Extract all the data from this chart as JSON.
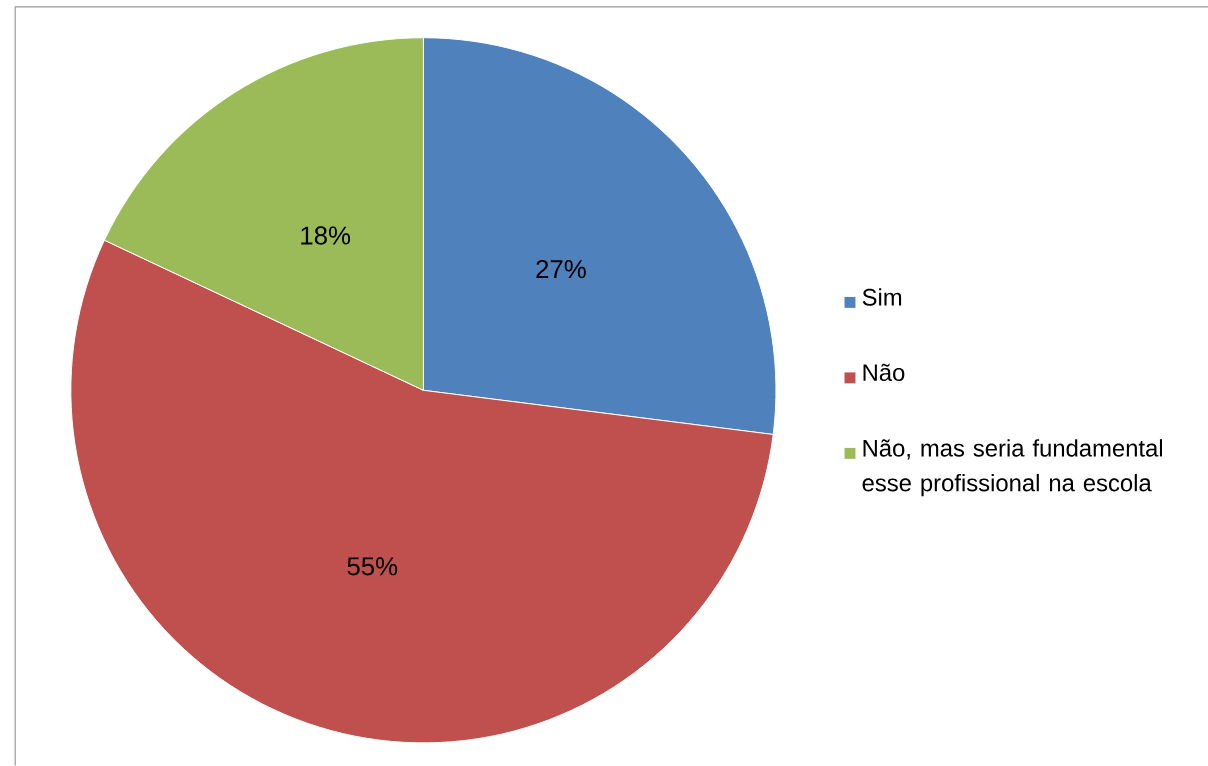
{
  "chart_data": {
    "type": "pie",
    "categories": [
      "Sim",
      "Não",
      "Não, mas seria fundamental esse profissional na escola"
    ],
    "values": [
      27,
      55,
      18
    ],
    "value_labels": [
      "27%",
      "55%",
      "18%"
    ],
    "colors": [
      "#4f81bd",
      "#c0504d",
      "#9bbb59"
    ],
    "legend": "right"
  }
}
